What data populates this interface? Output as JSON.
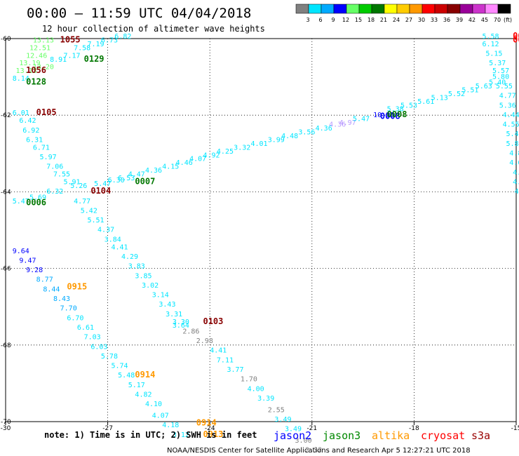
{
  "header": {
    "title": "00:00 — 11:59 UTC 04/04/2018",
    "subtitle": "12 hour collection of altimeter wave heights"
  },
  "color_scale": {
    "unit": "(ft)",
    "bins": [
      {
        "label": "3",
        "color": "#808080"
      },
      {
        "label": "6",
        "color": "#00e5ff"
      },
      {
        "label": "9",
        "color": "#00aaff"
      },
      {
        "label": "12",
        "color": "#0000ff"
      },
      {
        "label": "15",
        "color": "#66ff66"
      },
      {
        "label": "18",
        "color": "#00cc00"
      },
      {
        "label": "21",
        "color": "#007700"
      },
      {
        "label": "24",
        "color": "#ffff00"
      },
      {
        "label": "27",
        "color": "#ffcc00"
      },
      {
        "label": "30",
        "color": "#ff9900"
      },
      {
        "label": "33",
        "color": "#ff0000"
      },
      {
        "label": "36",
        "color": "#cc0000"
      },
      {
        "label": "39",
        "color": "#880000"
      },
      {
        "label": "42",
        "color": "#990099"
      },
      {
        "label": "45",
        "color": "#cc33cc"
      },
      {
        "label": "70",
        "color": "#ff88ff"
      },
      {
        "label": "",
        "color": "#000000"
      }
    ]
  },
  "note": "note: 1) Time is in UTC; 2) SWH is in feet",
  "satellites": [
    {
      "name": "jason2",
      "color": "#0000ff"
    },
    {
      "name": "jason3",
      "color": "#008800"
    },
    {
      "name": "altika",
      "color": "#ff9900"
    },
    {
      "name": "cryosat",
      "color": "#ff0000"
    },
    {
      "name": "s3a",
      "color": "#990000"
    }
  ],
  "credit": "NOAA/NESDIS Center for Satellite Applications and Research   Apr  5 12:27:21 UTC 2018",
  "chart_data": {
    "type": "scatter",
    "title": "00:00 — 11:59 UTC 04/04/2018",
    "subtitle": "12 hour collection of altimeter wave heights",
    "xlabel": "",
    "ylabel": "",
    "xlim": [
      -30,
      -15
    ],
    "ylim": [
      -70,
      -60
    ],
    "grid": true,
    "x_ticks": [
      "-30",
      "-27",
      "-24",
      "-21",
      "-18",
      "-15"
    ],
    "y_ticks": [
      "-60",
      "-62",
      "-64",
      "-66",
      "-68",
      "-70"
    ],
    "wave_labels": [
      {
        "text": "13.13",
        "x": -29.2,
        "y": -60.1,
        "color": "#66ff66"
      },
      {
        "text": "12.51",
        "x": -29.3,
        "y": -60.3,
        "color": "#66ff66"
      },
      {
        "text": "12.46",
        "x": -29.4,
        "y": -60.5,
        "color": "#66ff66"
      },
      {
        "text": "13.19",
        "x": -29.6,
        "y": -60.7,
        "color": "#66ff66"
      },
      {
        "text": "13.20",
        "x": -29.2,
        "y": -60.8,
        "color": "#66ff66"
      },
      {
        "text": "13.13",
        "x": -29.7,
        "y": -60.9,
        "color": "#66ff66"
      },
      {
        "text": "8.14",
        "x": -29.8,
        "y": -61.1,
        "color": "#00e5ff"
      },
      {
        "text": "8.91",
        "x": -28.7,
        "y": -60.6,
        "color": "#00e5ff"
      },
      {
        "text": "7.17",
        "x": -28.3,
        "y": -60.5,
        "color": "#00e5ff"
      },
      {
        "text": "7.58",
        "x": -28.0,
        "y": -60.3,
        "color": "#00e5ff"
      },
      {
        "text": "7.19",
        "x": -27.6,
        "y": -60.2,
        "color": "#00e5ff"
      },
      {
        "text": "6.73",
        "x": -27.2,
        "y": -60.1,
        "color": "#00e5ff"
      },
      {
        "text": "6.82",
        "x": -26.8,
        "y": -60.0,
        "color": "#00e5ff"
      },
      {
        "text": "6.01",
        "x": -29.8,
        "y": -62.0,
        "color": "#00e5ff"
      },
      {
        "text": "6.42",
        "x": -29.6,
        "y": -62.2,
        "color": "#00e5ff"
      },
      {
        "text": "6.92",
        "x": -29.5,
        "y": -62.45,
        "color": "#00e5ff"
      },
      {
        "text": "6.31",
        "x": -29.4,
        "y": -62.7,
        "color": "#00e5ff"
      },
      {
        "text": "6.71",
        "x": -29.2,
        "y": -62.9,
        "color": "#00e5ff"
      },
      {
        "text": "5.97",
        "x": -29.0,
        "y": -63.15,
        "color": "#00e5ff"
      },
      {
        "text": "7.06",
        "x": -28.8,
        "y": -63.4,
        "color": "#00e5ff"
      },
      {
        "text": "7.55",
        "x": -28.6,
        "y": -63.6,
        "color": "#00e5ff"
      },
      {
        "text": "5.91",
        "x": -28.3,
        "y": -63.8,
        "color": "#00e5ff"
      },
      {
        "text": "5.26",
        "x": -28.1,
        "y": -63.9,
        "color": "#00e5ff"
      },
      {
        "text": "6.32",
        "x": -28.8,
        "y": -64.05,
        "color": "#00e5ff"
      },
      {
        "text": "5.47",
        "x": -29.8,
        "y": -64.3,
        "color": "#00e5ff"
      },
      {
        "text": "5.69",
        "x": -29.3,
        "y": -64.2,
        "color": "#00e5ff"
      },
      {
        "text": "4.77",
        "x": -28.0,
        "y": -64.3,
        "color": "#00e5ff"
      },
      {
        "text": "5.42",
        "x": -27.8,
        "y": -64.55,
        "color": "#00e5ff"
      },
      {
        "text": "5.51",
        "x": -27.6,
        "y": -64.8,
        "color": "#00e5ff"
      },
      {
        "text": "4.37",
        "x": -27.3,
        "y": -65.05,
        "color": "#00e5ff"
      },
      {
        "text": "3.84",
        "x": -27.1,
        "y": -65.3,
        "color": "#00e5ff"
      },
      {
        "text": "4.41",
        "x": -26.9,
        "y": -65.5,
        "color": "#00e5ff"
      },
      {
        "text": "4.29",
        "x": -26.6,
        "y": -65.75,
        "color": "#00e5ff"
      },
      {
        "text": "3.83",
        "x": -26.4,
        "y": -66.0,
        "color": "#00e5ff"
      },
      {
        "text": "3.85",
        "x": -26.2,
        "y": -66.25,
        "color": "#00e5ff"
      },
      {
        "text": "3.02",
        "x": -26.0,
        "y": -66.5,
        "color": "#00e5ff"
      },
      {
        "text": "3.14",
        "x": -25.7,
        "y": -66.75,
        "color": "#00e5ff"
      },
      {
        "text": "3.43",
        "x": -25.5,
        "y": -67.0,
        "color": "#00e5ff"
      },
      {
        "text": "3.31",
        "x": -25.3,
        "y": -67.25,
        "color": "#00e5ff"
      },
      {
        "text": "3.30",
        "x": -25.1,
        "y": -67.45,
        "color": "#00e5ff"
      },
      {
        "text": "3.64",
        "x": -25.1,
        "y": -67.55,
        "color": "#00e5ff"
      },
      {
        "text": "2.86",
        "x": -24.8,
        "y": -67.7,
        "color": "#808080"
      },
      {
        "text": "2.98",
        "x": -24.4,
        "y": -67.95,
        "color": "#808080"
      },
      {
        "text": "4.41",
        "x": -24.0,
        "y": -68.2,
        "color": "#00e5ff"
      },
      {
        "text": "7.11",
        "x": -23.8,
        "y": -68.45,
        "color": "#00e5ff"
      },
      {
        "text": "3.77",
        "x": -23.5,
        "y": -68.7,
        "color": "#00e5ff"
      },
      {
        "text": "1.70",
        "x": -23.1,
        "y": -68.95,
        "color": "#808080"
      },
      {
        "text": "4.00",
        "x": -22.9,
        "y": -69.2,
        "color": "#00e5ff"
      },
      {
        "text": "3.39",
        "x": -22.6,
        "y": -69.45,
        "color": "#00e5ff"
      },
      {
        "text": "2.55",
        "x": -22.3,
        "y": -69.75,
        "color": "#808080"
      },
      {
        "text": "3.49",
        "x": -22.1,
        "y": -70.0,
        "color": "#00e5ff"
      },
      {
        "text": "3.49",
        "x": -21.8,
        "y": -70.25,
        "color": "#00e5ff"
      },
      {
        "text": "3.00",
        "x": -21.5,
        "y": -70.55,
        "color": "#808080"
      },
      {
        "text": "2.32",
        "x": -21.2,
        "y": -70.8,
        "color": "#808080"
      },
      {
        "text": "9.64",
        "x": -29.8,
        "y": -65.6,
        "color": "#0000ff"
      },
      {
        "text": "9.47",
        "x": -29.6,
        "y": -65.85,
        "color": "#0000ff"
      },
      {
        "text": "9.28",
        "x": -29.4,
        "y": -66.1,
        "color": "#0000ff"
      },
      {
        "text": "8.77",
        "x": -29.1,
        "y": -66.35,
        "color": "#00aaff"
      },
      {
        "text": "8.44",
        "x": -28.9,
        "y": -66.6,
        "color": "#00aaff"
      },
      {
        "text": "8.43",
        "x": -28.6,
        "y": -66.85,
        "color": "#00aaff"
      },
      {
        "text": "7.70",
        "x": -28.4,
        "y": -67.1,
        "color": "#00aaff"
      },
      {
        "text": "6.70",
        "x": -28.2,
        "y": -67.35,
        "color": "#00e5ff"
      },
      {
        "text": "6.61",
        "x": -27.9,
        "y": -67.6,
        "color": "#00e5ff"
      },
      {
        "text": "7.03",
        "x": -27.7,
        "y": -67.85,
        "color": "#00e5ff"
      },
      {
        "text": "6.03",
        "x": -27.5,
        "y": -68.1,
        "color": "#00e5ff"
      },
      {
        "text": "5.78",
        "x": -27.2,
        "y": -68.35,
        "color": "#00e5ff"
      },
      {
        "text": "5.74",
        "x": -26.9,
        "y": -68.6,
        "color": "#00e5ff"
      },
      {
        "text": "5.48",
        "x": -26.7,
        "y": -68.85,
        "color": "#00e5ff"
      },
      {
        "text": "5.17",
        "x": -26.4,
        "y": -69.1,
        "color": "#00e5ff"
      },
      {
        "text": "4.82",
        "x": -26.2,
        "y": -69.35,
        "color": "#00e5ff"
      },
      {
        "text": "4.10",
        "x": -25.9,
        "y": -69.6,
        "color": "#00e5ff"
      },
      {
        "text": "4.07",
        "x": -25.7,
        "y": -69.9,
        "color": "#00e5ff"
      },
      {
        "text": "4.18",
        "x": -25.4,
        "y": -70.15,
        "color": "#00e5ff"
      },
      {
        "text": "3.12",
        "x": -25.1,
        "y": -70.4,
        "color": "#00e5ff"
      },
      {
        "text": "5.47",
        "x": -27.4,
        "y": -63.85,
        "color": "#00e5ff"
      },
      {
        "text": "6.30",
        "x": -27.0,
        "y": -63.75,
        "color": "#00e5ff"
      },
      {
        "text": "6.53",
        "x": -26.7,
        "y": -63.7,
        "color": "#00e5ff"
      },
      {
        "text": "4.47",
        "x": -26.4,
        "y": -63.6,
        "color": "#00e5ff"
      },
      {
        "text": "4.36",
        "x": -25.9,
        "y": -63.5,
        "color": "#00e5ff"
      },
      {
        "text": "4.15",
        "x": -25.4,
        "y": -63.4,
        "color": "#00e5ff"
      },
      {
        "text": "4.46",
        "x": -25.0,
        "y": -63.3,
        "color": "#00e5ff"
      },
      {
        "text": "4.07",
        "x": -24.6,
        "y": -63.2,
        "color": "#00e5ff"
      },
      {
        "text": "4.92",
        "x": -24.2,
        "y": -63.1,
        "color": "#00e5ff"
      },
      {
        "text": "4.25",
        "x": -23.8,
        "y": -63.0,
        "color": "#00e5ff"
      },
      {
        "text": "3.32",
        "x": -23.3,
        "y": -62.9,
        "color": "#00e5ff"
      },
      {
        "text": "4.01",
        "x": -22.8,
        "y": -62.8,
        "color": "#00e5ff"
      },
      {
        "text": "3.99",
        "x": -22.3,
        "y": -62.7,
        "color": "#00e5ff"
      },
      {
        "text": "4.48",
        "x": -21.9,
        "y": -62.6,
        "color": "#00e5ff"
      },
      {
        "text": "3.56",
        "x": -21.4,
        "y": -62.5,
        "color": "#00e5ff"
      },
      {
        "text": "4.36",
        "x": -20.9,
        "y": -62.4,
        "color": "#00e5ff"
      },
      {
        "text": "4.36",
        "x": -20.5,
        "y": -62.3,
        "color": "#b99bff"
      },
      {
        "text": "4.97",
        "x": -20.2,
        "y": -62.25,
        "color": "#b99bff"
      },
      {
        "text": "5.47",
        "x": -19.8,
        "y": -62.15,
        "color": "#00e5ff"
      },
      {
        "text": "10.35",
        "x": -19.2,
        "y": -62.05,
        "color": "#0000ff"
      },
      {
        "text": "5.38",
        "x": -18.8,
        "y": -61.9,
        "color": "#00e5ff"
      },
      {
        "text": "5.53",
        "x": -18.4,
        "y": -61.8,
        "color": "#00e5ff"
      },
      {
        "text": "5.61",
        "x": -17.9,
        "y": -61.7,
        "color": "#00e5ff"
      },
      {
        "text": "5.13",
        "x": -17.5,
        "y": -61.6,
        "color": "#00e5ff"
      },
      {
        "text": "5.52",
        "x": -17.0,
        "y": -61.5,
        "color": "#00e5ff"
      },
      {
        "text": "5.51",
        "x": -16.6,
        "y": -61.4,
        "color": "#00e5ff"
      },
      {
        "text": "5.63",
        "x": -16.2,
        "y": -61.3,
        "color": "#00e5ff"
      },
      {
        "text": "5.40",
        "x": -15.8,
        "y": -61.2,
        "color": "#00e5ff"
      },
      {
        "text": "5.58",
        "x": -16.0,
        "y": -60.0,
        "color": "#00e5ff"
      },
      {
        "text": "6.12",
        "x": -16.0,
        "y": -60.2,
        "color": "#00e5ff"
      },
      {
        "text": "5.15",
        "x": -15.9,
        "y": -60.45,
        "color": "#00e5ff"
      },
      {
        "text": "5.37",
        "x": -15.8,
        "y": -60.7,
        "color": "#00e5ff"
      },
      {
        "text": "5.57",
        "x": -15.7,
        "y": -60.9,
        "color": "#00e5ff"
      },
      {
        "text": "5.80",
        "x": -15.7,
        "y": -61.05,
        "color": "#00e5ff"
      },
      {
        "text": "5.55",
        "x": -15.6,
        "y": -61.3,
        "color": "#00e5ff"
      },
      {
        "text": "4.77",
        "x": -15.5,
        "y": -61.55,
        "color": "#00e5ff"
      },
      {
        "text": "5.36",
        "x": -15.5,
        "y": -61.8,
        "color": "#00e5ff"
      },
      {
        "text": "4.44",
        "x": -15.4,
        "y": -62.05,
        "color": "#00e5ff"
      },
      {
        "text": "4.55",
        "x": -15.4,
        "y": -62.3,
        "color": "#00e5ff"
      },
      {
        "text": "5.47",
        "x": -15.3,
        "y": -62.55,
        "color": "#00e5ff"
      },
      {
        "text": "5.81",
        "x": -15.3,
        "y": -62.8,
        "color": "#00e5ff"
      },
      {
        "text": "4.85",
        "x": -15.2,
        "y": -63.05,
        "color": "#00e5ff"
      },
      {
        "text": "4.64",
        "x": -15.2,
        "y": -63.3,
        "color": "#00e5ff"
      },
      {
        "text": "4.94",
        "x": -15.1,
        "y": -63.55,
        "color": "#00e5ff"
      },
      {
        "text": "4.98",
        "x": -15.1,
        "y": -63.8,
        "color": "#00e5ff"
      },
      {
        "text": "4.87",
        "x": -15.05,
        "y": -64.05,
        "color": "#00e5ff"
      }
    ],
    "time_labels": [
      {
        "text": "1055",
        "x": -28.4,
        "y": -60.1,
        "color": "#880000"
      },
      {
        "text": "1056",
        "x": -29.4,
        "y": -60.9,
        "color": "#880000"
      },
      {
        "text": "0129",
        "x": -27.7,
        "y": -60.6,
        "color": "#007700"
      },
      {
        "text": "0128",
        "x": -29.4,
        "y": -61.2,
        "color": "#007700"
      },
      {
        "text": "0105",
        "x": -29.1,
        "y": -62.0,
        "color": "#880000"
      },
      {
        "text": "0104",
        "x": -27.5,
        "y": -64.05,
        "color": "#880000"
      },
      {
        "text": "0007",
        "x": -26.2,
        "y": -63.8,
        "color": "#007700"
      },
      {
        "text": "0006",
        "x": -29.4,
        "y": -64.35,
        "color": "#007700"
      },
      {
        "text": "0915",
        "x": -28.2,
        "y": -66.55,
        "color": "#ff9900"
      },
      {
        "text": "0103",
        "x": -24.2,
        "y": -67.45,
        "color": "#880000"
      },
      {
        "text": "0914",
        "x": -26.2,
        "y": -68.85,
        "color": "#ff9900"
      },
      {
        "text": "0914",
        "x": -24.4,
        "y": -70.1,
        "color": "#ff9900"
      },
      {
        "text": "0913",
        "x": -24.2,
        "y": -70.4,
        "color": "#ff9900"
      },
      {
        "text": "0008",
        "x": -19.0,
        "y": -62.1,
        "color": "#0000ff"
      },
      {
        "text": "0008",
        "x": -18.8,
        "y": -62.05,
        "color": "#007700"
      },
      {
        "text": "064",
        "x": -15.1,
        "y": -60.0,
        "color": "#ff0000"
      },
      {
        "text": "064",
        "x": -15.1,
        "y": -60.1,
        "color": "#ff0000"
      }
    ]
  }
}
